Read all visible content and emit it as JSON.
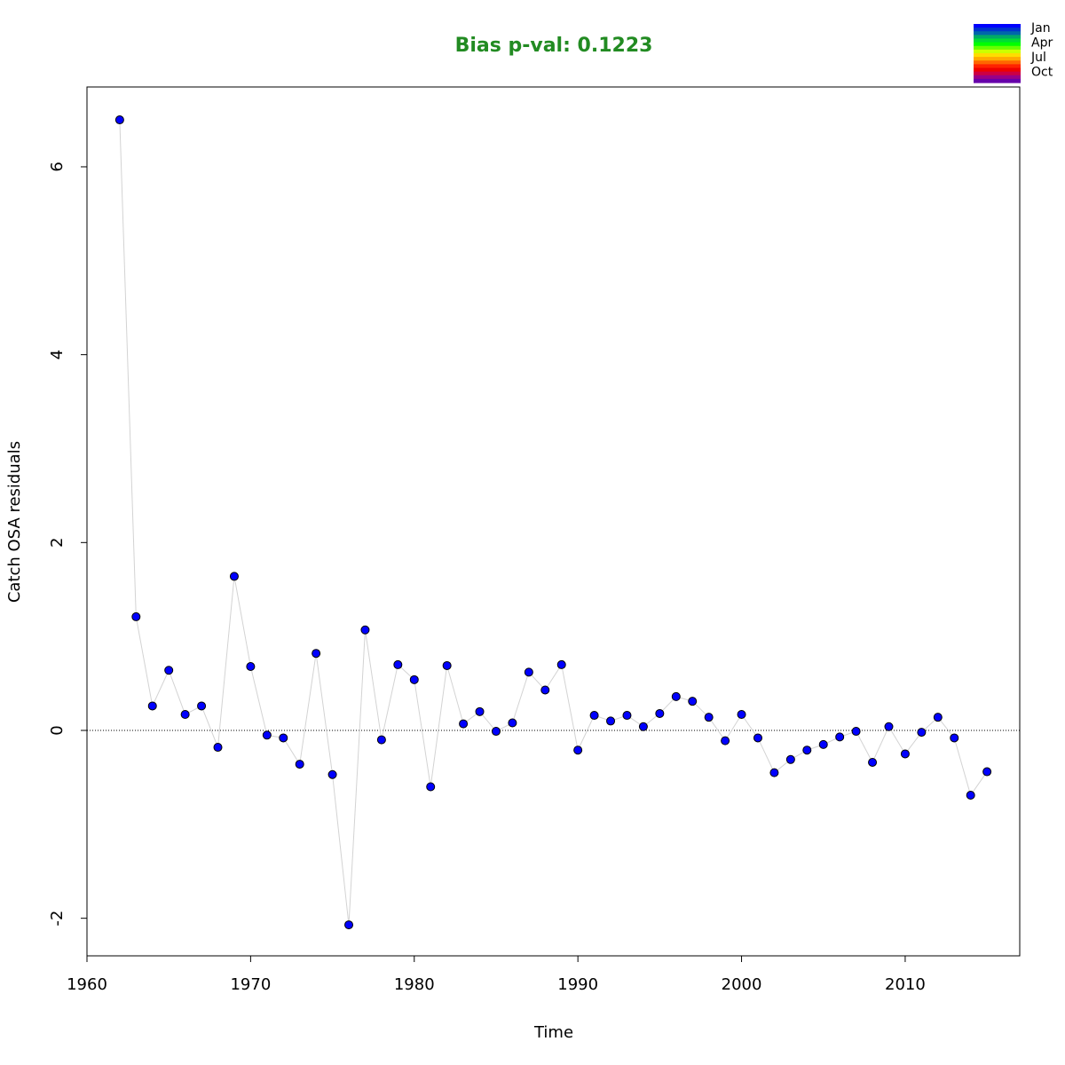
{
  "chart_data": {
    "type": "scatter",
    "title": "Bias p-val: 0.1223",
    "title_color": "#228B22",
    "xlabel": "Time",
    "ylabel": "Catch OSA residuals",
    "xlim": [
      1960,
      2017
    ],
    "ylim": [
      -2.4,
      6.85
    ],
    "x_ticks": [
      1960,
      1970,
      1980,
      1990,
      2000,
      2010
    ],
    "y_ticks": [
      -2,
      0,
      2,
      4,
      6
    ],
    "reference_line": 0,
    "point_color": "#0000FF",
    "point_edge_color": "#000000",
    "line_color": "#D3D3D3",
    "grid": false,
    "series": [
      {
        "x": [
          1962,
          1963,
          1964,
          1965,
          1966,
          1967,
          1968,
          1969,
          1970,
          1971,
          1972,
          1973,
          1974,
          1975,
          1976,
          1977,
          1978,
          1979,
          1980,
          1981,
          1982,
          1983,
          1984,
          1985,
          1986,
          1987,
          1988,
          1989,
          1990,
          1991,
          1992,
          1993,
          1994,
          1995,
          1996,
          1997,
          1998,
          1999,
          2000,
          2001,
          2002,
          2003,
          2004,
          2005,
          2006,
          2007,
          2008,
          2009,
          2010,
          2011,
          2012,
          2013,
          2014,
          2015
        ],
        "values": [
          6.5,
          1.21,
          0.26,
          0.64,
          0.17,
          0.26,
          -0.18,
          1.64,
          0.68,
          -0.05,
          -0.08,
          -0.36,
          0.82,
          -0.47,
          -2.07,
          1.07,
          -0.1,
          0.7,
          0.54,
          -0.6,
          0.69,
          0.07,
          0.2,
          -0.01,
          0.08,
          0.62,
          0.43,
          0.7,
          -0.21,
          0.16,
          0.1,
          0.16,
          0.04,
          0.18,
          0.36,
          0.31,
          0.14,
          -0.11,
          0.17,
          -0.08,
          -0.45,
          -0.31,
          -0.21,
          -0.15,
          -0.07,
          -0.01,
          -0.34,
          0.04,
          -0.25,
          -0.02,
          0.14,
          -0.08,
          -0.69,
          -0.44
        ]
      }
    ],
    "legend": {
      "placement": "top-right",
      "labels": [
        "Jan",
        "Apr",
        "Jul",
        "Oct"
      ],
      "colors": [
        "#0000FF",
        "#0033CC",
        "#0066AA",
        "#00AA66",
        "#00DD33",
        "#00FF00",
        "#66FF00",
        "#CCFF00",
        "#FFDD00",
        "#FFAA00",
        "#FF6600",
        "#FF2200",
        "#EE0000",
        "#CC0044",
        "#990088",
        "#6600AA"
      ]
    }
  }
}
